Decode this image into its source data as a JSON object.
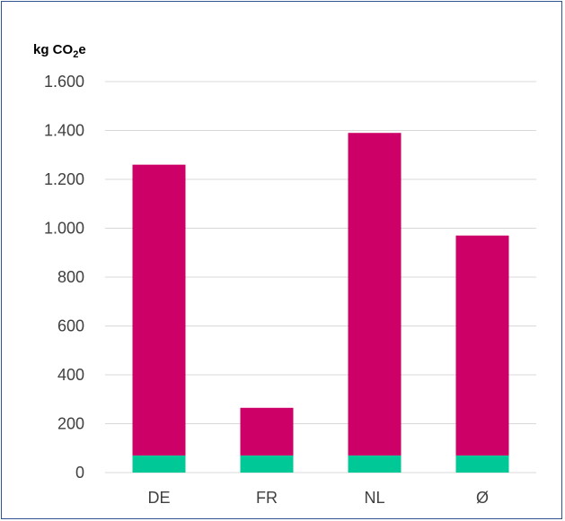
{
  "chart_data": {
    "type": "bar",
    "stacked": true,
    "ylabel_main": "kg CO",
    "ylabel_sub": "2",
    "ylabel_end": "e",
    "categories": [
      "DE",
      "FR",
      "NL",
      "Ø"
    ],
    "series": [
      {
        "values": [
          70,
          70,
          70,
          70
        ],
        "color": "#00c896"
      },
      {
        "values": [
          1190,
          195,
          1320,
          900
        ],
        "color": "#cc0066"
      }
    ],
    "yticks": [
      {
        "value": 0,
        "label": "0"
      },
      {
        "value": 200,
        "label": "200"
      },
      {
        "value": 400,
        "label": "400"
      },
      {
        "value": 600,
        "label": "600"
      },
      {
        "value": 800,
        "label": "800"
      },
      {
        "value": 1000,
        "label": "1.000"
      },
      {
        "value": 1200,
        "label": "1.200"
      },
      {
        "value": 1400,
        "label": "1.400"
      },
      {
        "value": 1600,
        "label": "1.600"
      }
    ],
    "ylim": [
      0,
      1600
    ],
    "grid": true,
    "gridColor": "#d9d9d9",
    "legend": "none"
  }
}
